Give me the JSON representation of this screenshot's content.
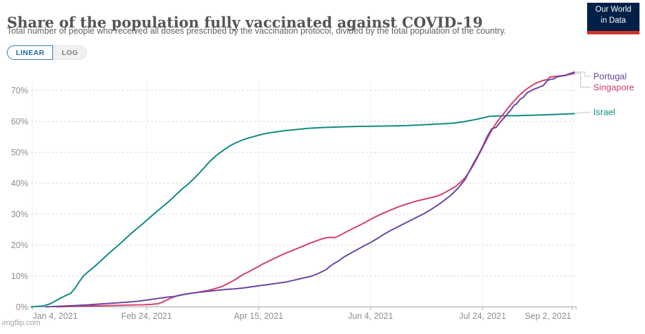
{
  "header": {
    "title": "Share of the population fully vaccinated against COVID-19",
    "subtitle": "Total number of people who received all doses prescribed by the vaccination protocol, divided by the total population of the country.",
    "logo": {
      "line1": "Our World",
      "line2": "in Data",
      "bg_color": "#002147",
      "bar_color": "#d0362c"
    }
  },
  "toolbar": {
    "linear_label": "LINEAR",
    "log_label": "LOG",
    "active": "LINEAR",
    "active_color": "#1d6aaa"
  },
  "watermark": "imgflip.com",
  "chart_data": {
    "type": "line",
    "title": "Share of the population fully vaccinated against COVID-19",
    "xlabel": "",
    "ylabel": "",
    "x_encoding": "days_since_2021-01-01",
    "x_domain_days": [
      2,
      248
    ],
    "ylim": [
      0,
      76
    ],
    "grid": true,
    "legend_position": "right",
    "x_ticks": [
      {
        "day": 3,
        "label": "Jan 4, 2021",
        "label_dx": 33
      },
      {
        "day": 54,
        "label": "Feb 24, 2021",
        "label_dx": 0
      },
      {
        "day": 104,
        "label": "Apr 15, 2021",
        "label_dx": 0
      },
      {
        "day": 154,
        "label": "Jun 4, 2021",
        "label_dx": 0
      },
      {
        "day": 204,
        "label": "Jul 24, 2021",
        "label_dx": 0
      },
      {
        "day": 244,
        "label": "Sep 2, 2021",
        "label_dx": -35
      }
    ],
    "y_ticks": [
      {
        "value": 0,
        "label": "0%"
      },
      {
        "value": 10,
        "label": "10%"
      },
      {
        "value": 20,
        "label": "20%"
      },
      {
        "value": 30,
        "label": "30%"
      },
      {
        "value": 40,
        "label": "40%"
      },
      {
        "value": 50,
        "label": "50%"
      },
      {
        "value": 60,
        "label": "60%"
      },
      {
        "value": 70,
        "label": "70%"
      }
    ],
    "legend": [
      {
        "label": "Portugal",
        "y": 111,
        "bend_x": 849
      },
      {
        "label": "Singapore",
        "y": 127,
        "bend_x": 842.5
      },
      {
        "label": "Israel",
        "y": 163,
        "bend_x": null
      }
    ],
    "series": [
      {
        "name": "Israel",
        "color": "#0e8a80",
        "end_value_pct": 62.5,
        "points": [
          [
            2.5,
            0
          ],
          [
            8,
            0.3
          ],
          [
            11,
            1
          ],
          [
            14,
            2.2
          ],
          [
            16,
            3
          ],
          [
            18,
            3.7
          ],
          [
            20,
            4.3
          ],
          [
            22,
            6
          ],
          [
            24,
            8.2
          ],
          [
            26,
            10.2
          ],
          [
            28,
            11.4
          ],
          [
            31,
            13.2
          ],
          [
            34,
            15.2
          ],
          [
            37,
            17.2
          ],
          [
            40,
            19.1
          ],
          [
            43,
            21
          ],
          [
            46,
            23
          ],
          [
            49,
            24.9
          ],
          [
            52,
            26.7
          ],
          [
            55,
            28.6
          ],
          [
            58,
            30.5
          ],
          [
            61,
            32.3
          ],
          [
            64,
            34.1
          ],
          [
            67,
            36.2
          ],
          [
            70,
            38.2
          ],
          [
            73,
            40
          ],
          [
            76,
            42.1
          ],
          [
            79,
            44.4
          ],
          [
            82,
            46.9
          ],
          [
            85,
            48.9
          ],
          [
            88,
            50.5
          ],
          [
            91,
            52
          ],
          [
            94,
            53.1
          ],
          [
            97,
            54
          ],
          [
            100,
            54.7
          ],
          [
            103,
            55.3
          ],
          [
            106,
            55.9
          ],
          [
            110,
            56.4
          ],
          [
            115,
            56.9
          ],
          [
            120,
            57.3
          ],
          [
            126,
            57.7
          ],
          [
            133,
            58
          ],
          [
            141,
            58.2
          ],
          [
            150,
            58.35
          ],
          [
            160,
            58.45
          ],
          [
            170,
            58.6
          ],
          [
            181,
            59
          ],
          [
            191,
            59.4
          ],
          [
            196,
            59.9
          ],
          [
            201,
            60.6
          ],
          [
            204,
            61.1
          ],
          [
            207,
            61.6
          ],
          [
            212,
            61.75
          ],
          [
            220,
            61.85
          ],
          [
            228,
            62
          ],
          [
            236,
            62.2
          ],
          [
            245,
            62.5
          ]
        ]
      },
      {
        "name": "Singapore",
        "color": "#d63e6e",
        "end_value_pct": 75.5,
        "points": [
          [
            14,
            0
          ],
          [
            21,
            0.15
          ],
          [
            28,
            0.3
          ],
          [
            35,
            0.4
          ],
          [
            42,
            0.5
          ],
          [
            48,
            0.6
          ],
          [
            53,
            0.7
          ],
          [
            56,
            0.8
          ],
          [
            59,
            1
          ],
          [
            61,
            1.5
          ],
          [
            63,
            2.2
          ],
          [
            65,
            2.9
          ],
          [
            67,
            3.4
          ],
          [
            70,
            3.9
          ],
          [
            73,
            4.3
          ],
          [
            76,
            4.6
          ],
          [
            79,
            5
          ],
          [
            82,
            5.4
          ],
          [
            85,
            6
          ],
          [
            88,
            6.7
          ],
          [
            90,
            7.4
          ],
          [
            92,
            8.2
          ],
          [
            94,
            9
          ],
          [
            96,
            10
          ],
          [
            98,
            10.8
          ],
          [
            100,
            11.5
          ],
          [
            102,
            12.3
          ],
          [
            104,
            13.1
          ],
          [
            106,
            13.9
          ],
          [
            108,
            14.6
          ],
          [
            110,
            15.3
          ],
          [
            112,
            16
          ],
          [
            114,
            16.7
          ],
          [
            116,
            17.3
          ],
          [
            118,
            17.9
          ],
          [
            121,
            18.8
          ],
          [
            124,
            19.7
          ],
          [
            127,
            20.6
          ],
          [
            130,
            21.4
          ],
          [
            132,
            21.9
          ],
          [
            134,
            22.3
          ],
          [
            136,
            22.5
          ],
          [
            138,
            22.4
          ],
          [
            140,
            23
          ],
          [
            142,
            23.8
          ],
          [
            145,
            24.9
          ],
          [
            148,
            26
          ],
          [
            151,
            27.1
          ],
          [
            154,
            28.3
          ],
          [
            157,
            29.4
          ],
          [
            160,
            30.4
          ],
          [
            163,
            31.3
          ],
          [
            166,
            32.2
          ],
          [
            169,
            33
          ],
          [
            172,
            33.7
          ],
          [
            175,
            34.3
          ],
          [
            178,
            34.8
          ],
          [
            181,
            35.3
          ],
          [
            184,
            35.9
          ],
          [
            186,
            36.5
          ],
          [
            188,
            37.3
          ],
          [
            190,
            38.1
          ],
          [
            192,
            39
          ],
          [
            194,
            40.2
          ],
          [
            196,
            41.6
          ],
          [
            198,
            43.6
          ],
          [
            200,
            46
          ],
          [
            202,
            48.7
          ],
          [
            204,
            51.5
          ],
          [
            206,
            54.3
          ],
          [
            208,
            57
          ],
          [
            210,
            59.3
          ],
          [
            211,
            60.3
          ],
          [
            212,
            61.2
          ],
          [
            213,
            62.1
          ],
          [
            215,
            63.9
          ],
          [
            217,
            65.7
          ],
          [
            219,
            67.3
          ],
          [
            221,
            68.8
          ],
          [
            223,
            70.1
          ],
          [
            225,
            71.1
          ],
          [
            227,
            72
          ],
          [
            229,
            72.7
          ],
          [
            231,
            73.2
          ],
          [
            233,
            73.5
          ],
          [
            234,
            74.3
          ],
          [
            236,
            74.5
          ],
          [
            238,
            74.6
          ],
          [
            240,
            74.8
          ],
          [
            242,
            75
          ],
          [
            243,
            75.2
          ],
          [
            245,
            75.5
          ]
        ]
      },
      {
        "name": "Portugal",
        "color": "#6a45a0",
        "end_value_pct": 75.9,
        "points": [
          [
            9,
            0
          ],
          [
            15,
            0.2
          ],
          [
            21,
            0.4
          ],
          [
            27,
            0.6
          ],
          [
            33,
            0.9
          ],
          [
            39,
            1.2
          ],
          [
            45,
            1.5
          ],
          [
            50,
            1.8
          ],
          [
            54,
            2.2
          ],
          [
            58,
            2.6
          ],
          [
            61,
            2.9
          ],
          [
            64,
            3.2
          ],
          [
            66,
            3.3
          ],
          [
            69,
            3.8
          ],
          [
            73,
            4.3
          ],
          [
            77,
            4.7
          ],
          [
            81,
            5
          ],
          [
            85,
            5.3
          ],
          [
            89,
            5.6
          ],
          [
            93,
            5.8
          ],
          [
            97,
            6.1
          ],
          [
            101,
            6.5
          ],
          [
            104,
            6.8
          ],
          [
            107,
            7.1
          ],
          [
            110,
            7.4
          ],
          [
            113,
            7.7
          ],
          [
            116,
            8
          ],
          [
            119,
            8.5
          ],
          [
            122,
            9
          ],
          [
            125,
            9.5
          ],
          [
            128,
            10
          ],
          [
            131,
            10.9
          ],
          [
            134,
            12
          ],
          [
            137,
            13.7
          ],
          [
            140,
            15
          ],
          [
            142,
            16.1
          ],
          [
            145,
            17.3
          ],
          [
            148,
            18.5
          ],
          [
            151,
            19.7
          ],
          [
            154,
            20.8
          ],
          [
            157,
            22.1
          ],
          [
            160,
            23.5
          ],
          [
            163,
            24.7
          ],
          [
            166,
            25.8
          ],
          [
            169,
            26.9
          ],
          [
            172,
            28
          ],
          [
            175,
            29.1
          ],
          [
            178,
            30.2
          ],
          [
            181,
            31.5
          ],
          [
            184,
            32.9
          ],
          [
            187,
            34.5
          ],
          [
            190,
            36.2
          ],
          [
            193,
            38.3
          ],
          [
            196,
            41
          ],
          [
            198,
            43.7
          ],
          [
            200,
            46.5
          ],
          [
            202,
            49
          ],
          [
            204,
            51.8
          ],
          [
            206,
            55
          ],
          [
            208,
            57.5
          ],
          [
            209,
            57.8
          ],
          [
            210,
            58
          ],
          [
            212,
            59.8
          ],
          [
            214,
            61.5
          ],
          [
            215,
            62.3
          ],
          [
            217,
            64
          ],
          [
            218,
            65.2
          ],
          [
            219,
            65.5
          ],
          [
            221,
            67.3
          ],
          [
            222,
            67.6
          ],
          [
            224,
            69.3
          ],
          [
            225,
            69.6
          ],
          [
            227,
            70.4
          ],
          [
            229,
            70.9
          ],
          [
            230,
            71.3
          ],
          [
            231,
            71.5
          ],
          [
            233,
            73.2
          ],
          [
            234,
            73.5
          ],
          [
            236,
            73.8
          ],
          [
            237,
            74.3
          ],
          [
            239,
            74.6
          ],
          [
            241,
            74.8
          ],
          [
            242,
            75.2
          ],
          [
            243,
            75.4
          ],
          [
            245,
            75.9
          ]
        ]
      }
    ],
    "draw_order": [
      "Israel",
      "Singapore",
      "Portugal"
    ],
    "style": {
      "grid_color": "#d8d8d8",
      "vgrid_color": "#e9e9e9",
      "axis_color": "#a3a3a3",
      "tick_label_color": "#8e8e8e",
      "connector_color": "#c4c4c4"
    }
  }
}
